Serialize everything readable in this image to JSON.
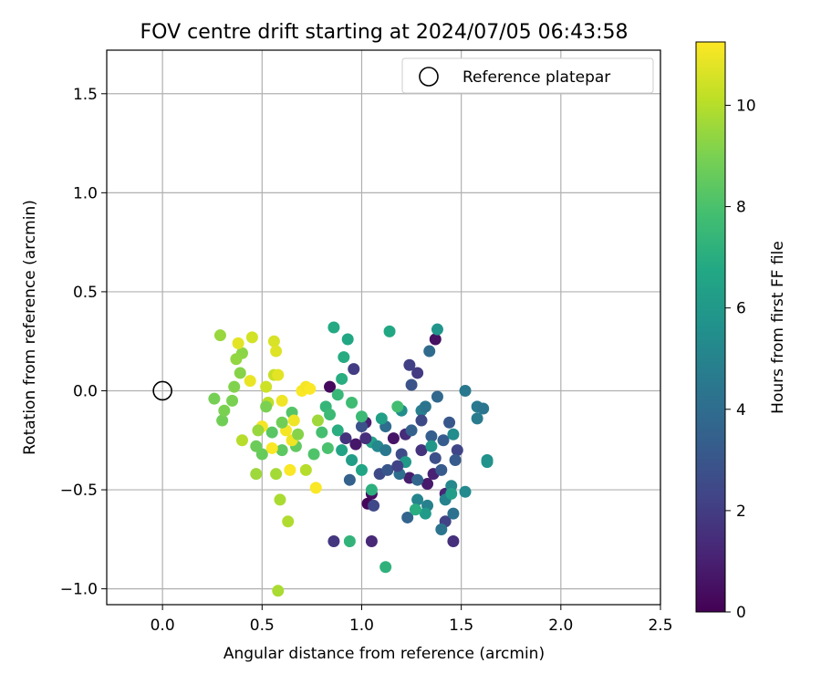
{
  "chart_data": {
    "type": "scatter",
    "title": "FOV centre drift starting at 2024/07/05 06:43:58",
    "xlabel": "Angular distance from reference (arcmin)",
    "ylabel": "Rotation from reference (arcmin)",
    "xlim": [
      -0.28,
      2.5
    ],
    "ylim": [
      -1.08,
      1.72
    ],
    "xticks": [
      0.0,
      0.5,
      1.0,
      1.5,
      2.0,
      2.5
    ],
    "xtick_labels": [
      "0.0",
      "0.5",
      "1.0",
      "1.5",
      "2.0",
      "2.5"
    ],
    "yticks": [
      -1.0,
      -0.5,
      0.0,
      0.5,
      1.0,
      1.5
    ],
    "ytick_labels": [
      "−1.0",
      "−0.5",
      "0.0",
      "0.5",
      "1.0",
      "1.5"
    ],
    "grid": true,
    "legend": {
      "position": "upper right",
      "entries": [
        "Reference platepar"
      ]
    },
    "reference_point": {
      "x": 0.0,
      "y": 0.0
    },
    "colorbar": {
      "label": "Hours from first FF file",
      "range": [
        0,
        11.25
      ],
      "ticks": [
        0,
        2,
        4,
        6,
        8,
        10
      ],
      "tick_labels": [
        "0",
        "2",
        "4",
        "6",
        "8",
        "10"
      ],
      "colormap": "viridis"
    },
    "series": [
      {
        "points": [
          {
            "x": 1.03,
            "y": -0.57,
            "c": 0.2
          },
          {
            "x": 0.84,
            "y": 0.02,
            "c": 0.3
          },
          {
            "x": 1.05,
            "y": -0.52,
            "c": 0.4
          },
          {
            "x": 1.16,
            "y": -0.24,
            "c": 0.6
          },
          {
            "x": 1.37,
            "y": 0.26,
            "c": 0.5
          },
          {
            "x": 1.33,
            "y": -0.47,
            "c": 0.8
          },
          {
            "x": 0.97,
            "y": -0.27,
            "c": 0.7
          },
          {
            "x": 1.24,
            "y": -0.44,
            "c": 0.9
          },
          {
            "x": 1.02,
            "y": -0.16,
            "c": 1.0
          },
          {
            "x": 1.36,
            "y": -0.42,
            "c": 1.1
          },
          {
            "x": 1.05,
            "y": -0.76,
            "c": 1.3
          },
          {
            "x": 1.42,
            "y": -0.52,
            "c": 1.2
          },
          {
            "x": 1.46,
            "y": -0.76,
            "c": 1.5
          },
          {
            "x": 1.22,
            "y": -0.22,
            "c": 1.4
          },
          {
            "x": 0.92,
            "y": -0.24,
            "c": 1.6
          },
          {
            "x": 1.3,
            "y": -0.3,
            "c": 1.7
          },
          {
            "x": 0.86,
            "y": -0.76,
            "c": 1.8
          },
          {
            "x": 1.28,
            "y": 0.09,
            "c": 1.9
          },
          {
            "x": 0.96,
            "y": 0.11,
            "c": 2.0
          },
          {
            "x": 1.24,
            "y": 0.13,
            "c": 2.1
          },
          {
            "x": 1.42,
            "y": -0.66,
            "c": 2.2
          },
          {
            "x": 1.48,
            "y": -0.3,
            "c": 2.3
          },
          {
            "x": 1.06,
            "y": -0.58,
            "c": 2.4
          },
          {
            "x": 1.09,
            "y": -0.42,
            "c": 2.5
          },
          {
            "x": 1.2,
            "y": -0.32,
            "c": 2.6
          },
          {
            "x": 1.37,
            "y": -0.34,
            "c": 2.7
          },
          {
            "x": 1.25,
            "y": 0.03,
            "c": 2.9
          },
          {
            "x": 1.0,
            "y": -0.18,
            "c": 2.8
          },
          {
            "x": 1.13,
            "y": -0.4,
            "c": 3.0
          },
          {
            "x": 1.44,
            "y": -0.16,
            "c": 3.1
          },
          {
            "x": 1.47,
            "y": -0.35,
            "c": 3.2
          },
          {
            "x": 1.41,
            "y": -0.25,
            "c": 3.3
          },
          {
            "x": 1.35,
            "y": -0.23,
            "c": 3.4
          },
          {
            "x": 0.94,
            "y": -0.45,
            "c": 3.5
          },
          {
            "x": 1.23,
            "y": -0.64,
            "c": 3.6
          },
          {
            "x": 1.28,
            "y": -0.45,
            "c": 3.7
          },
          {
            "x": 1.38,
            "y": -0.03,
            "c": 3.8
          },
          {
            "x": 1.34,
            "y": 0.2,
            "c": 3.9
          },
          {
            "x": 1.12,
            "y": -0.18,
            "c": 4.0
          },
          {
            "x": 1.19,
            "y": -0.42,
            "c": 4.1
          },
          {
            "x": 1.46,
            "y": -0.62,
            "c": 4.2
          },
          {
            "x": 1.4,
            "y": -0.7,
            "c": 4.3
          },
          {
            "x": 1.52,
            "y": 0.0,
            "c": 4.5
          },
          {
            "x": 1.58,
            "y": -0.08,
            "c": 4.6
          },
          {
            "x": 1.61,
            "y": -0.09,
            "c": 4.4
          },
          {
            "x": 1.58,
            "y": -0.14,
            "c": 4.7
          },
          {
            "x": 1.3,
            "y": -0.1,
            "c": 4.8
          },
          {
            "x": 1.33,
            "y": -0.58,
            "c": 4.9
          },
          {
            "x": 1.42,
            "y": -0.55,
            "c": 5.0
          },
          {
            "x": 1.28,
            "y": -0.55,
            "c": 5.1
          },
          {
            "x": 1.45,
            "y": -0.48,
            "c": 5.2
          },
          {
            "x": 1.52,
            "y": -0.51,
            "c": 5.3
          },
          {
            "x": 1.46,
            "y": -0.22,
            "c": 5.4
          },
          {
            "x": 1.2,
            "y": -0.1,
            "c": 5.5
          },
          {
            "x": 1.63,
            "y": -0.35,
            "c": 5.6
          },
          {
            "x": 1.63,
            "y": -0.36,
            "c": 5.7
          },
          {
            "x": 1.38,
            "y": 0.31,
            "c": 5.8
          },
          {
            "x": 1.35,
            "y": -0.28,
            "c": 5.9
          },
          {
            "x": 1.22,
            "y": -0.36,
            "c": 6.0
          },
          {
            "x": 1.32,
            "y": -0.62,
            "c": 6.1
          },
          {
            "x": 1.45,
            "y": -0.52,
            "c": 6.2
          },
          {
            "x": 1.1,
            "y": -0.14,
            "c": 6.3
          },
          {
            "x": 1.05,
            "y": -0.26,
            "c": 6.4
          },
          {
            "x": 0.9,
            "y": -0.3,
            "c": 6.5
          },
          {
            "x": 1.0,
            "y": -0.4,
            "c": 6.6
          },
          {
            "x": 1.14,
            "y": 0.3,
            "c": 6.7
          },
          {
            "x": 0.93,
            "y": 0.26,
            "c": 6.7
          },
          {
            "x": 0.86,
            "y": 0.32,
            "c": 6.8
          },
          {
            "x": 0.91,
            "y": 0.17,
            "c": 6.9
          },
          {
            "x": 0.9,
            "y": 0.06,
            "c": 7.0
          },
          {
            "x": 1.05,
            "y": -0.5,
            "c": 7.1
          },
          {
            "x": 1.12,
            "y": -0.89,
            "c": 7.2
          },
          {
            "x": 0.94,
            "y": -0.76,
            "c": 7.3
          },
          {
            "x": 0.82,
            "y": -0.08,
            "c": 7.4
          },
          {
            "x": 0.88,
            "y": -0.02,
            "c": 7.5
          },
          {
            "x": 1.0,
            "y": -0.13,
            "c": 7.6
          },
          {
            "x": 0.95,
            "y": -0.06,
            "c": 7.7
          },
          {
            "x": 1.18,
            "y": -0.08,
            "c": 7.8
          },
          {
            "x": 1.27,
            "y": -0.6,
            "c": 7.0
          },
          {
            "x": 0.8,
            "y": -0.21,
            "c": 7.9
          },
          {
            "x": 0.83,
            "y": -0.29,
            "c": 8.0
          },
          {
            "x": 0.76,
            "y": -0.32,
            "c": 8.1
          },
          {
            "x": 0.65,
            "y": -0.11,
            "c": 8.2
          },
          {
            "x": 0.55,
            "y": -0.21,
            "c": 8.3
          },
          {
            "x": 0.6,
            "y": -0.3,
            "c": 8.4
          },
          {
            "x": 0.67,
            "y": -0.28,
            "c": 8.5
          },
          {
            "x": 0.5,
            "y": -0.32,
            "c": 8.6
          },
          {
            "x": 0.47,
            "y": -0.28,
            "c": 8.7
          },
          {
            "x": 0.3,
            "y": -0.15,
            "c": 8.8
          },
          {
            "x": 0.26,
            "y": -0.04,
            "c": 8.9
          },
          {
            "x": 0.31,
            "y": -0.1,
            "c": 9.0
          },
          {
            "x": 0.36,
            "y": 0.02,
            "c": 9.1
          },
          {
            "x": 0.39,
            "y": 0.09,
            "c": 9.2
          },
          {
            "x": 0.4,
            "y": 0.19,
            "c": 9.3
          },
          {
            "x": 0.37,
            "y": 0.16,
            "c": 9.4
          },
          {
            "x": 0.29,
            "y": 0.28,
            "c": 9.5
          },
          {
            "x": 0.47,
            "y": -0.42,
            "c": 9.6
          },
          {
            "x": 0.57,
            "y": -0.42,
            "c": 9.7
          },
          {
            "x": 0.59,
            "y": -0.55,
            "c": 9.8
          },
          {
            "x": 0.63,
            "y": -0.66,
            "c": 9.9
          },
          {
            "x": 0.72,
            "y": -0.4,
            "c": 10.0
          },
          {
            "x": 0.58,
            "y": -1.01,
            "c": 9.8
          },
          {
            "x": 0.53,
            "y": -0.06,
            "c": 10.1
          },
          {
            "x": 0.56,
            "y": 0.08,
            "c": 10.3
          },
          {
            "x": 0.52,
            "y": 0.02,
            "c": 10.4
          },
          {
            "x": 0.45,
            "y": 0.27,
            "c": 10.5
          },
          {
            "x": 0.56,
            "y": 0.25,
            "c": 10.6
          },
          {
            "x": 0.57,
            "y": 0.2,
            "c": 10.7
          },
          {
            "x": 0.58,
            "y": 0.08,
            "c": 10.8
          },
          {
            "x": 0.44,
            "y": 0.05,
            "c": 10.9
          },
          {
            "x": 0.6,
            "y": -0.05,
            "c": 11.0
          },
          {
            "x": 0.66,
            "y": -0.15,
            "c": 11.0
          },
          {
            "x": 0.62,
            "y": -0.2,
            "c": 11.1
          },
          {
            "x": 0.5,
            "y": -0.18,
            "c": 11.1
          },
          {
            "x": 0.55,
            "y": -0.29,
            "c": 11.2
          },
          {
            "x": 0.64,
            "y": -0.4,
            "c": 11.2
          },
          {
            "x": 0.77,
            "y": -0.49,
            "c": 11.2
          },
          {
            "x": 0.7,
            "y": 0.0,
            "c": 11.2
          },
          {
            "x": 0.72,
            "y": 0.02,
            "c": 11.1
          },
          {
            "x": 0.74,
            "y": 0.01,
            "c": 11.2
          },
          {
            "x": 0.65,
            "y": -0.25,
            "c": 11.0
          },
          {
            "x": 0.4,
            "y": -0.25,
            "c": 10.0
          },
          {
            "x": 0.38,
            "y": 0.24,
            "c": 10.8
          },
          {
            "x": 0.35,
            "y": -0.05,
            "c": 9.0
          },
          {
            "x": 0.48,
            "y": -0.2,
            "c": 9.5
          },
          {
            "x": 0.52,
            "y": -0.08,
            "c": 9.0
          },
          {
            "x": 0.6,
            "y": -0.16,
            "c": 8.8
          },
          {
            "x": 0.68,
            "y": -0.22,
            "c": 9.2
          },
          {
            "x": 0.78,
            "y": -0.15,
            "c": 9.6
          },
          {
            "x": 0.84,
            "y": -0.12,
            "c": 7.6
          },
          {
            "x": 0.88,
            "y": -0.2,
            "c": 7.0
          },
          {
            "x": 0.95,
            "y": -0.35,
            "c": 6.2
          },
          {
            "x": 1.08,
            "y": -0.28,
            "c": 5.2
          },
          {
            "x": 1.12,
            "y": -0.3,
            "c": 4.5
          },
          {
            "x": 1.25,
            "y": -0.2,
            "c": 3.5
          },
          {
            "x": 1.3,
            "y": -0.15,
            "c": 2.5
          },
          {
            "x": 1.4,
            "y": -0.4,
            "c": 3.2
          },
          {
            "x": 1.32,
            "y": -0.08,
            "c": 4.3
          },
          {
            "x": 1.18,
            "y": -0.38,
            "c": 2.2
          },
          {
            "x": 1.02,
            "y": -0.24,
            "c": 1.5
          }
        ]
      }
    ]
  }
}
